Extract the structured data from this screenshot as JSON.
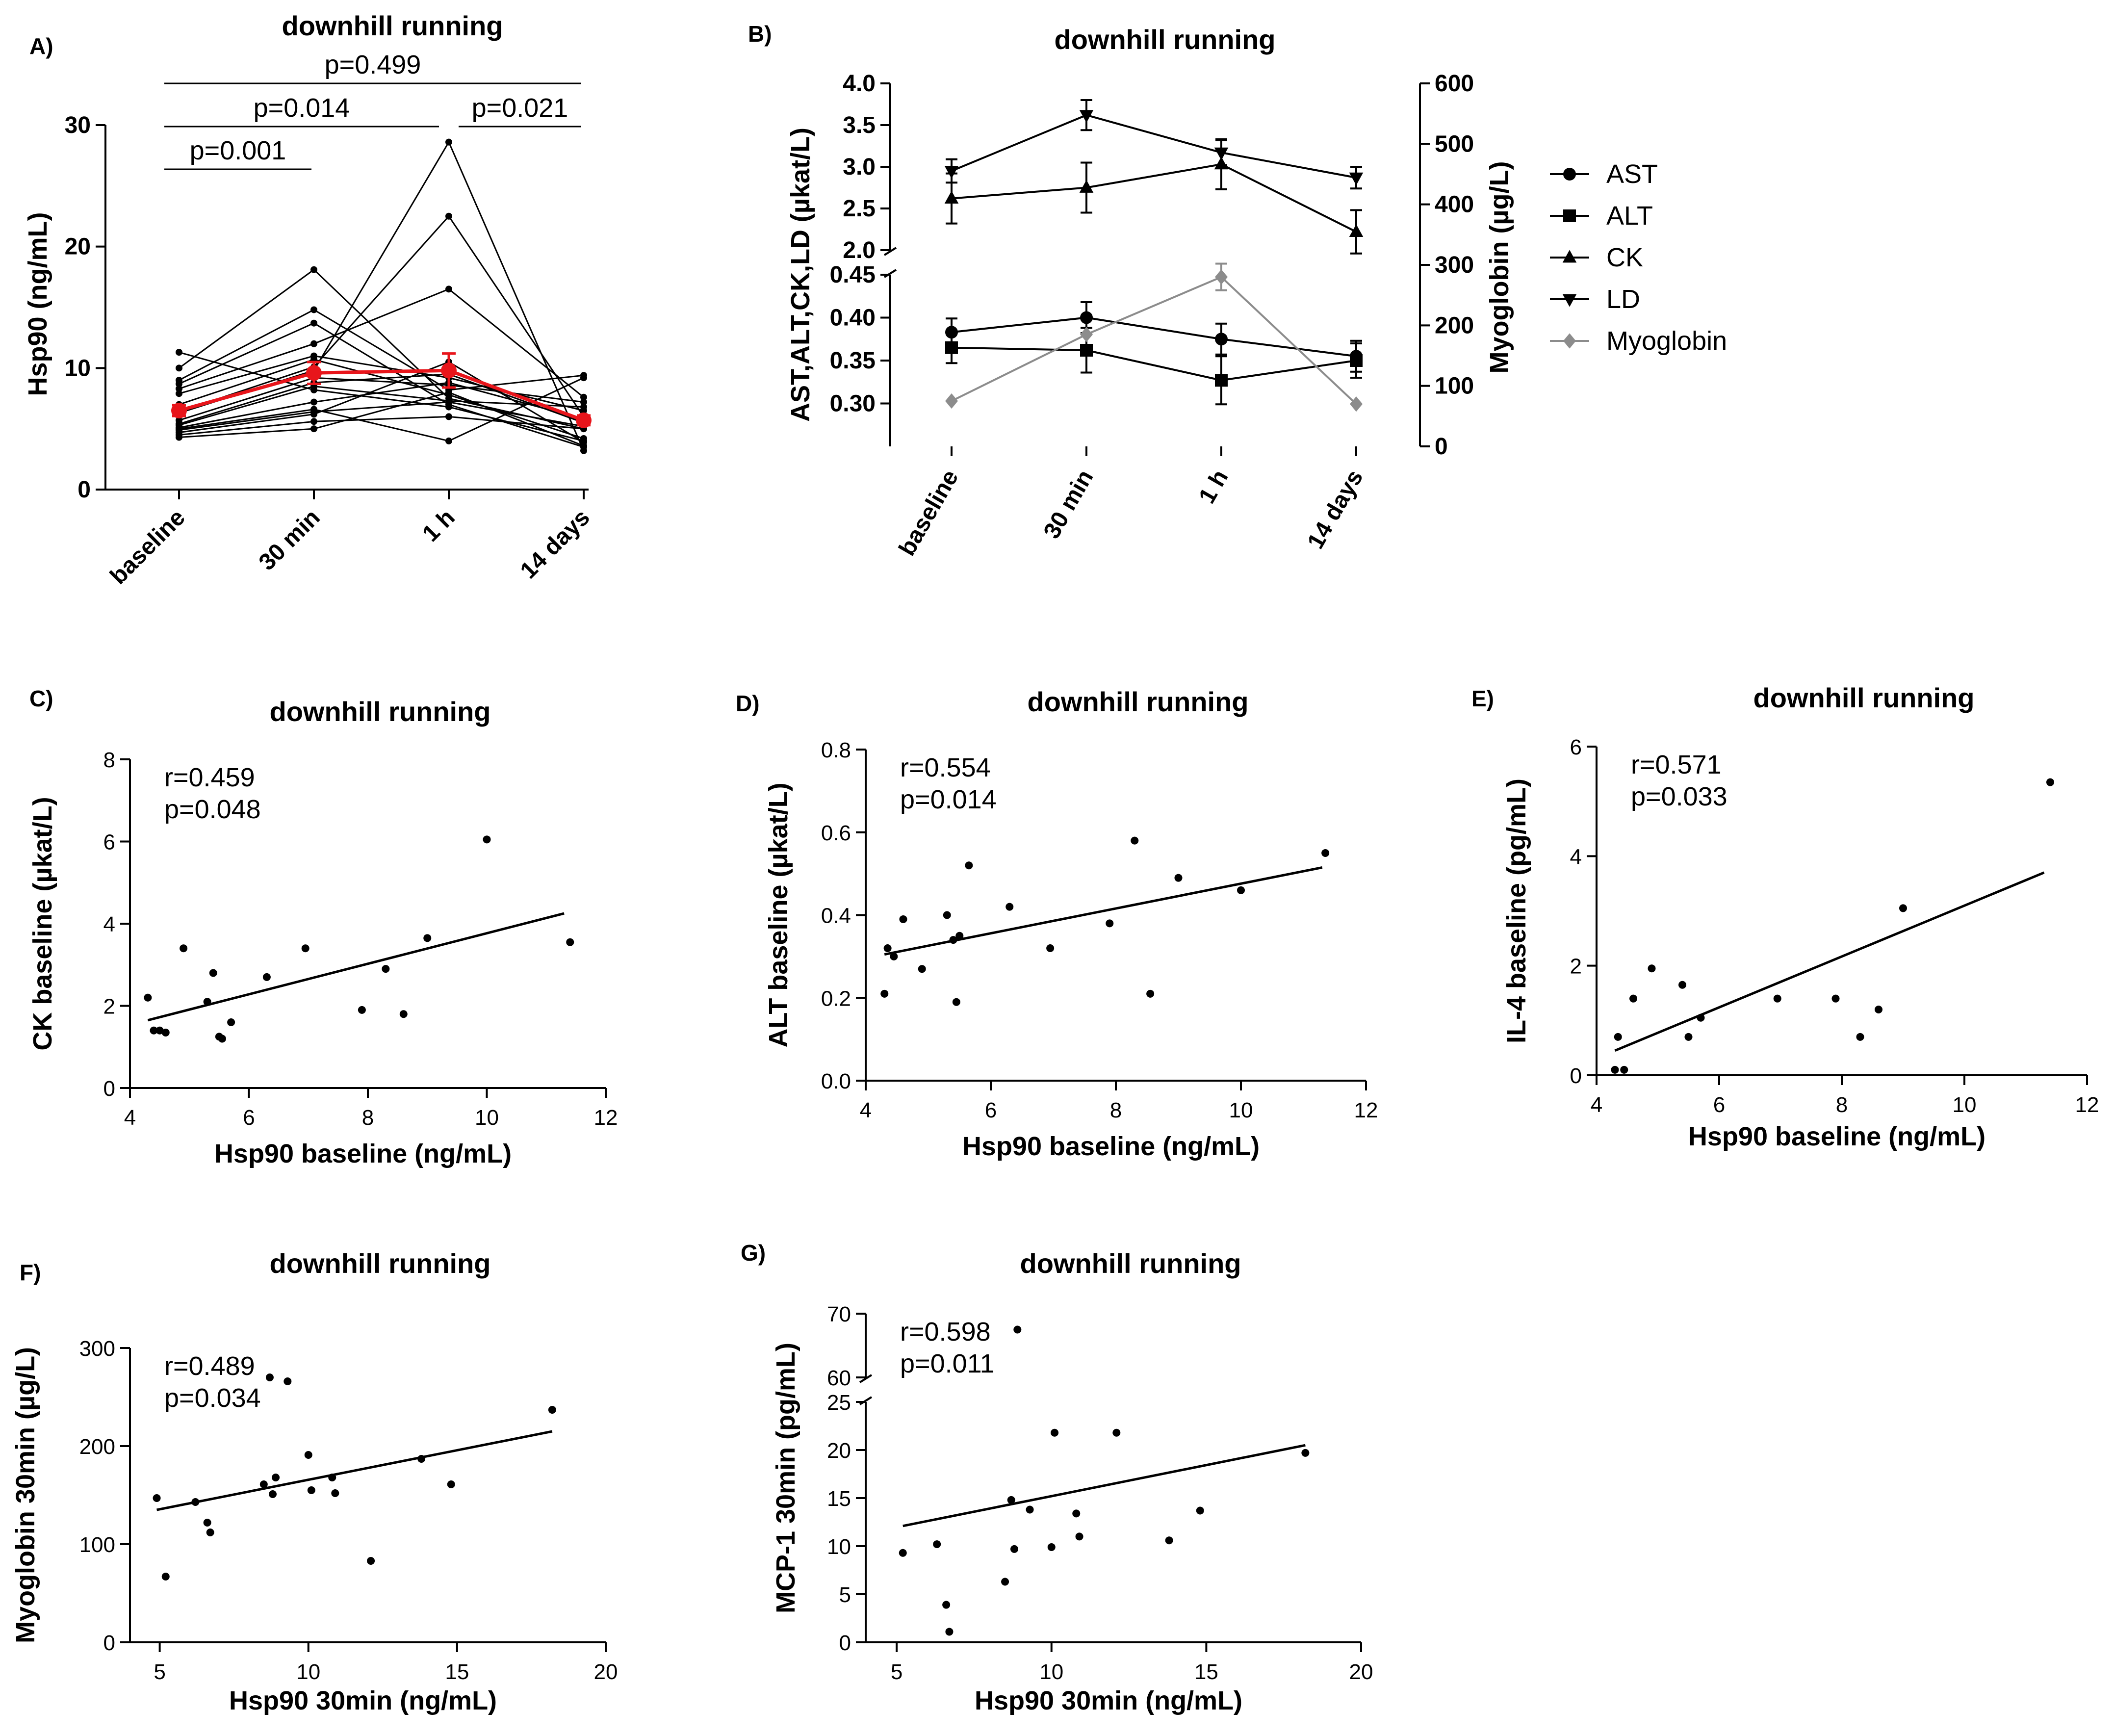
{
  "chart_data": [
    {
      "panel": "A)",
      "type": "line",
      "title": "downhill running",
      "xlabel": "",
      "ylabel": "Hsp90 (ng/mL)",
      "categories": [
        "baseline",
        "30 min",
        "1 h",
        "14 days"
      ],
      "ylim": [
        0,
        30
      ],
      "yticks": [
        0,
        10,
        20,
        30
      ],
      "individual_series": [
        [
          11.3,
          8.2,
          6.8,
          4.0
        ],
        [
          10.0,
          18.1,
          7.5,
          5.0
        ],
        [
          9.0,
          14.8,
          8.2,
          9.4
        ],
        [
          8.7,
          13.7,
          7.0,
          3.5
        ],
        [
          8.3,
          12.0,
          16.5,
          7.6
        ],
        [
          7.9,
          11.0,
          9.2,
          6.5
        ],
        [
          7.0,
          10.7,
          7.8,
          4.2
        ],
        [
          6.4,
          10.1,
          22.5,
          6.0
        ],
        [
          6.3,
          9.8,
          28.6,
          3.2
        ],
        [
          5.7,
          9.2,
          8.6,
          7.2
        ],
        [
          5.4,
          8.8,
          9.5,
          5.5
        ],
        [
          5.3,
          8.5,
          7.3,
          6.8
        ],
        [
          5.1,
          7.2,
          8.8,
          5.8
        ],
        [
          5.0,
          6.6,
          4.0,
          9.2
        ],
        [
          4.9,
          6.4,
          7.2,
          5.2
        ],
        [
          4.7,
          6.2,
          10.5,
          3.9
        ],
        [
          4.5,
          5.6,
          6.0,
          5.0
        ],
        [
          4.3,
          5.0,
          8.0,
          3.6
        ]
      ],
      "mean": {
        "values": [
          6.5,
          9.6,
          9.8,
          5.7
        ],
        "errors": [
          0.45,
          0.9,
          1.4,
          0.4
        ],
        "color": "#e8151b"
      },
      "comparisons": [
        {
          "label": "p=0.499",
          "from": "baseline",
          "to": "14 days"
        },
        {
          "label": "p=0.014",
          "from": "baseline",
          "to": "1 h"
        },
        {
          "label": "p=0.021",
          "from": "1 h",
          "to": "14 days"
        },
        {
          "label": "p=0.001",
          "from": "baseline",
          "to": "30 min"
        }
      ]
    },
    {
      "panel": "B)",
      "type": "line",
      "title": "downhill running",
      "ylabel": "AST,ALT,CK,LD (µkat/L)",
      "ylabel_right": "Myoglobin (µg/L)",
      "categories": [
        "baseline",
        "30 min",
        "1 h",
        "14 days"
      ],
      "ylim_upper": [
        2.0,
        4.0
      ],
      "yticks_upper": [
        "2.0",
        "2.5",
        "3.0",
        "3.5",
        "4.0"
      ],
      "ylim_lower": [
        0.25,
        0.45
      ],
      "yticks_lower": [
        "0.30",
        "0.35",
        "0.40",
        "0.45"
      ],
      "ylim_right": [
        0,
        600
      ],
      "yticks_right": [
        "0",
        "100",
        "200",
        "300",
        "400",
        "500",
        "600"
      ],
      "series": [
        {
          "name": "AST",
          "marker": "circle",
          "axis": "lower",
          "values": [
            0.383,
            0.4,
            0.375,
            0.355
          ],
          "errors": [
            0.016,
            0.018,
            0.018,
            0.018
          ],
          "color": "#000000"
        },
        {
          "name": "ALT",
          "marker": "square",
          "axis": "lower",
          "values": [
            0.365,
            0.362,
            0.327,
            0.35
          ],
          "errors": [
            0.018,
            0.026,
            0.028,
            0.02
          ],
          "color": "#000000"
        },
        {
          "name": "CK",
          "marker": "triangle-up",
          "axis": "upper",
          "values": [
            2.62,
            2.75,
            3.03,
            2.22
          ],
          "errors": [
            0.3,
            0.3,
            0.3,
            0.26
          ],
          "color": "#000000"
        },
        {
          "name": "LD",
          "marker": "triangle-down",
          "axis": "upper",
          "values": [
            2.95,
            3.62,
            3.17,
            2.87
          ],
          "errors": [
            0.14,
            0.18,
            0.15,
            0.13
          ],
          "color": "#000000"
        },
        {
          "name": "Myoglobin",
          "marker": "diamond",
          "axis": "right",
          "values": [
            75,
            185,
            280,
            70
          ],
          "errors": [
            0,
            0,
            22,
            0
          ],
          "color": "#8c8c8c"
        }
      ]
    },
    {
      "panel": "C)",
      "type": "scatter",
      "title": "downhill running",
      "xlabel": "Hsp90 baseline (ng/mL)",
      "ylabel": "CK baseline (µkat/L)",
      "xlim": [
        4,
        12
      ],
      "xticks": [
        4,
        6,
        8,
        10,
        12
      ],
      "ylim": [
        0,
        8
      ],
      "yticks": [
        0,
        2,
        4,
        6,
        8
      ],
      "stat_r": "r=0.459",
      "stat_p": "p=0.048",
      "fit": {
        "x": [
          4.3,
          11.3
        ],
        "y": [
          1.65,
          4.25
        ]
      },
      "points": [
        [
          4.3,
          2.2
        ],
        [
          4.4,
          1.4
        ],
        [
          4.5,
          1.4
        ],
        [
          4.6,
          1.35
        ],
        [
          4.9,
          3.4
        ],
        [
          5.3,
          2.1
        ],
        [
          5.4,
          2.8
        ],
        [
          5.5,
          1.25
        ],
        [
          5.55,
          1.2
        ],
        [
          5.7,
          1.6
        ],
        [
          6.3,
          2.7
        ],
        [
          6.95,
          3.4
        ],
        [
          7.9,
          1.9
        ],
        [
          8.3,
          2.9
        ],
        [
          8.6,
          1.8
        ],
        [
          9.0,
          3.65
        ],
        [
          10.0,
          6.05
        ],
        [
          11.4,
          3.55
        ]
      ]
    },
    {
      "panel": "D)",
      "type": "scatter",
      "title": "downhill running",
      "xlabel": "Hsp90 baseline (ng/mL)",
      "ylabel": "ALT baseline (µkat/L)",
      "xlim": [
        4,
        12
      ],
      "xticks": [
        4,
        6,
        8,
        10,
        12
      ],
      "ylim": [
        0,
        0.8
      ],
      "yticks": [
        "0.0",
        "0.2",
        "0.4",
        "0.6",
        "0.8"
      ],
      "stat_r": "r=0.554",
      "stat_p": "p=0.014",
      "fit": {
        "x": [
          4.3,
          11.3
        ],
        "y": [
          0.305,
          0.515
        ]
      },
      "points": [
        [
          4.3,
          0.21
        ],
        [
          4.35,
          0.32
        ],
        [
          4.45,
          0.3
        ],
        [
          4.6,
          0.39
        ],
        [
          4.9,
          0.27
        ],
        [
          5.3,
          0.4
        ],
        [
          5.4,
          0.34
        ],
        [
          5.45,
          0.19
        ],
        [
          5.5,
          0.35
        ],
        [
          5.65,
          0.52
        ],
        [
          6.3,
          0.42
        ],
        [
          6.95,
          0.32
        ],
        [
          7.9,
          0.38
        ],
        [
          8.3,
          0.58
        ],
        [
          8.55,
          0.21
        ],
        [
          9.0,
          0.49
        ],
        [
          10.0,
          0.46
        ],
        [
          11.35,
          0.55
        ]
      ]
    },
    {
      "panel": "E)",
      "type": "scatter",
      "title": "downhill running",
      "xlabel": "Hsp90 baseline (ng/mL)",
      "ylabel": "IL-4 baseline (pg/mL)",
      "xlim": [
        4,
        12
      ],
      "xticks": [
        4,
        6,
        8,
        10,
        12
      ],
      "ylim": [
        0,
        6
      ],
      "yticks": [
        0,
        2,
        4,
        6
      ],
      "stat_r": "r=0.571",
      "stat_p": "p=0.033",
      "fit": {
        "x": [
          4.3,
          11.3
        ],
        "y": [
          0.45,
          3.7
        ]
      },
      "points": [
        [
          4.3,
          0.1
        ],
        [
          4.35,
          0.7
        ],
        [
          4.45,
          0.1
        ],
        [
          4.6,
          1.4
        ],
        [
          4.9,
          1.95
        ],
        [
          5.4,
          1.65
        ],
        [
          5.5,
          0.7
        ],
        [
          5.7,
          1.05
        ],
        [
          6.95,
          1.4
        ],
        [
          7.9,
          1.4
        ],
        [
          8.3,
          0.7
        ],
        [
          8.6,
          1.2
        ],
        [
          9.0,
          3.05
        ],
        [
          11.4,
          5.35
        ]
      ]
    },
    {
      "panel": "F)",
      "type": "scatter",
      "title": "downhill running",
      "xlabel": "Hsp90 30min (ng/mL)",
      "ylabel": "Myoglobin 30min (µg/L)",
      "xlim": [
        4,
        20
      ],
      "xticks": [
        5,
        10,
        15,
        20
      ],
      "ylim": [
        0,
        300
      ],
      "yticks": [
        0,
        100,
        200,
        300
      ],
      "stat_r": "r=0.489",
      "stat_p": "p=0.034",
      "fit": {
        "x": [
          4.9,
          18.2
        ],
        "y": [
          135,
          215
        ]
      },
      "points": [
        [
          4.9,
          147
        ],
        [
          5.2,
          67
        ],
        [
          6.2,
          143
        ],
        [
          6.6,
          122
        ],
        [
          6.7,
          112
        ],
        [
          8.5,
          161
        ],
        [
          8.7,
          270
        ],
        [
          8.8,
          151
        ],
        [
          8.9,
          168
        ],
        [
          9.3,
          266
        ],
        [
          10.0,
          191
        ],
        [
          10.1,
          155
        ],
        [
          10.8,
          168
        ],
        [
          10.9,
          152
        ],
        [
          12.1,
          83
        ],
        [
          13.8,
          187
        ],
        [
          14.8,
          161
        ],
        [
          18.2,
          237
        ]
      ]
    },
    {
      "panel": "G)",
      "type": "scatter",
      "title": "downhill running",
      "xlabel": "Hsp90 30min (ng/mL)",
      "ylabel": "MCP-1 30min (pg/mL)",
      "xlim": [
        4,
        20
      ],
      "xticks": [
        5,
        10,
        15,
        20
      ],
      "ylim_lower": [
        0,
        25
      ],
      "yticks_lower": [
        0,
        5,
        10,
        15,
        20,
        25
      ],
      "ylim_upper": [
        60,
        70
      ],
      "yticks_upper": [
        60,
        70
      ],
      "stat_r": "r=0.598",
      "stat_p": "p=0.011",
      "fit": {
        "x": [
          5.2,
          18.2
        ],
        "y": [
          12.1,
          20.5
        ]
      },
      "points": [
        [
          5.2,
          9.3
        ],
        [
          6.3,
          10.2
        ],
        [
          6.6,
          3.9
        ],
        [
          6.7,
          1.1
        ],
        [
          8.5,
          6.3
        ],
        [
          8.7,
          14.8
        ],
        [
          8.8,
          9.7
        ],
        [
          8.9,
          67.5
        ],
        [
          9.3,
          13.8
        ],
        [
          10.0,
          9.9
        ],
        [
          10.1,
          21.8
        ],
        [
          10.8,
          13.4
        ],
        [
          10.9,
          11.0
        ],
        [
          12.1,
          21.8
        ],
        [
          13.8,
          10.6
        ],
        [
          14.8,
          13.7
        ],
        [
          18.2,
          19.7
        ]
      ]
    }
  ],
  "legend_title": ""
}
